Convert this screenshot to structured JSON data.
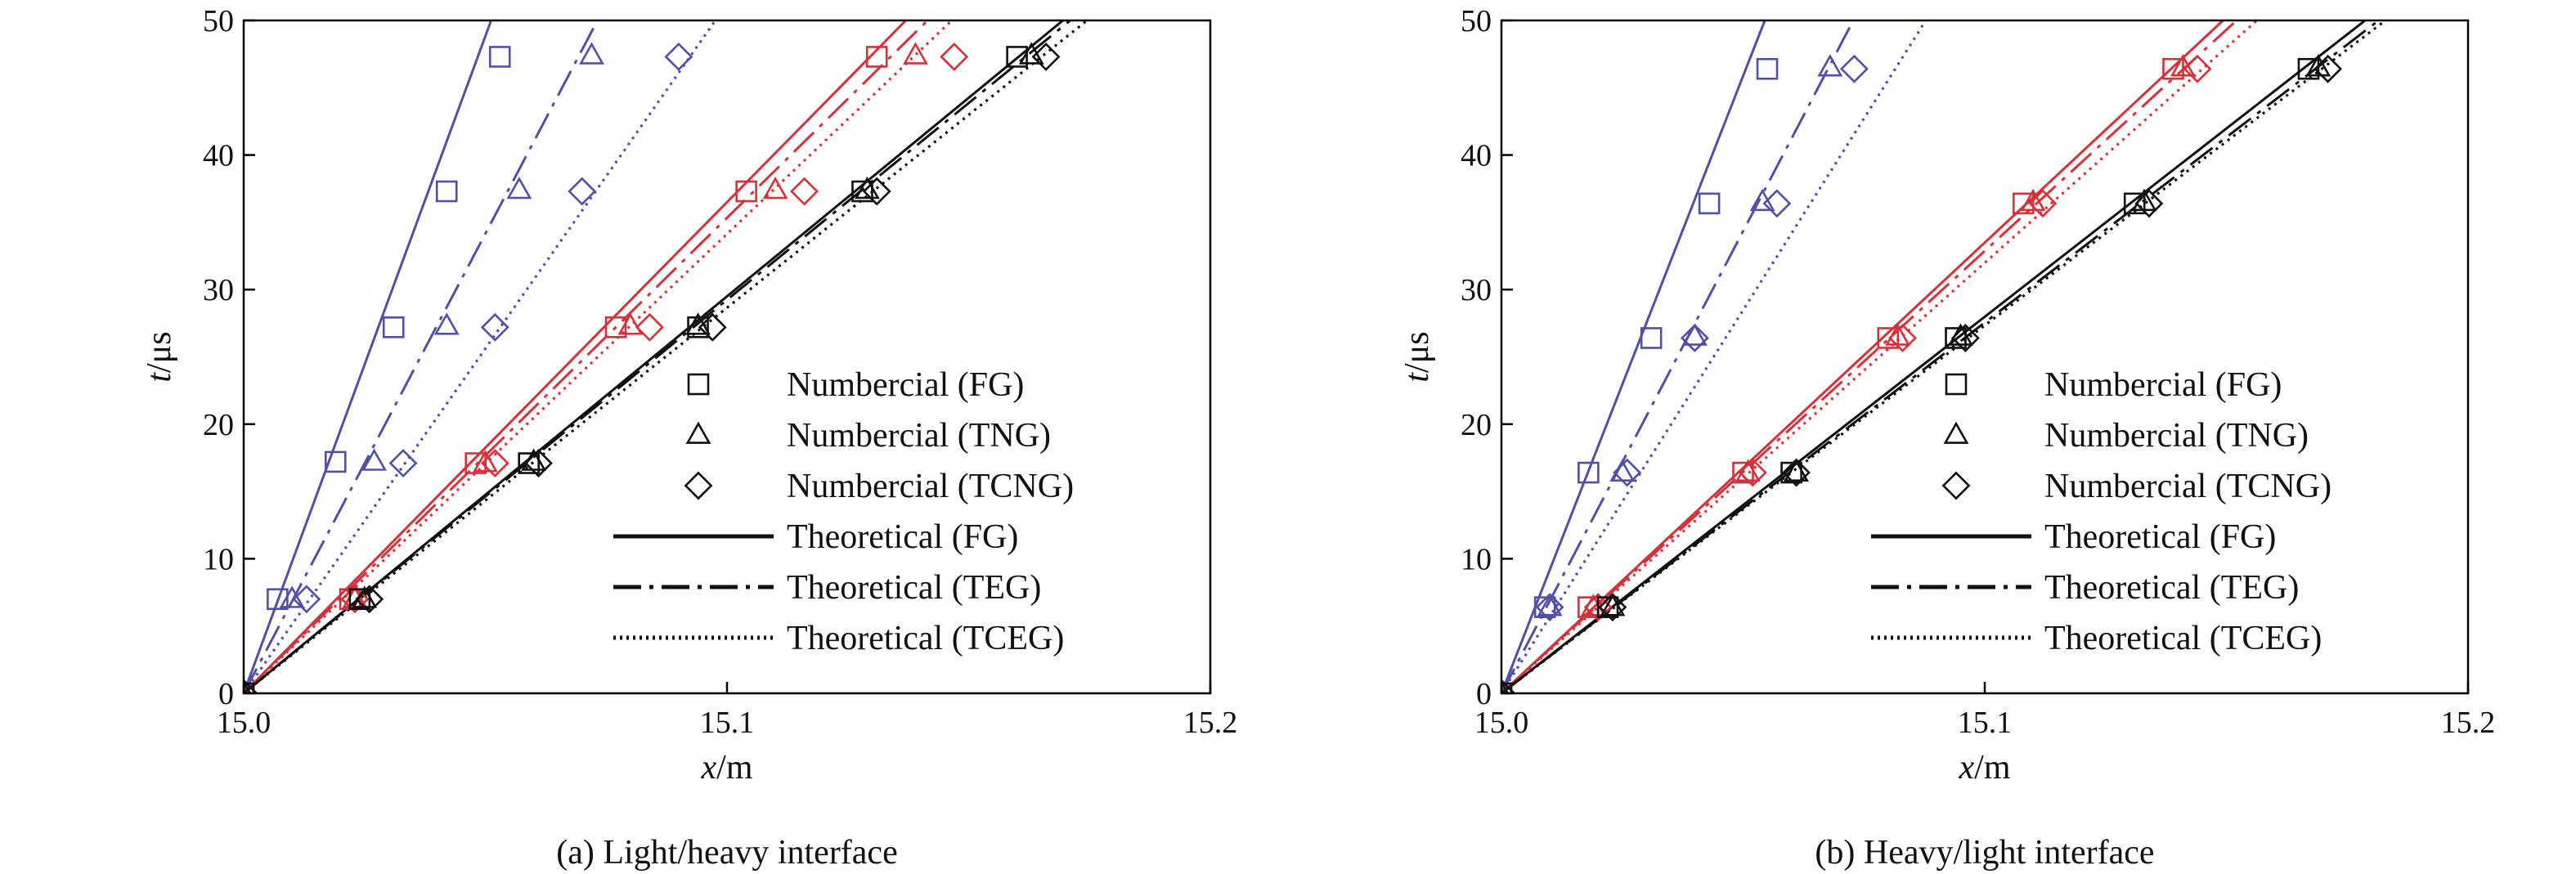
{
  "colors": {
    "blue": "#5250a6",
    "red": "#d6313a",
    "black": "#111111"
  },
  "chart_data": [
    {
      "type": "line",
      "caption": "(a) Light/heavy interface",
      "xlabel_var": "x",
      "xlabel_unit": "/m",
      "ylabel_var": "t",
      "ylabel_unit": "/μs",
      "xlim": [
        15.0,
        15.2
      ],
      "ylim": [
        0,
        50
      ],
      "xticks": [
        15.0,
        15.1,
        15.2
      ],
      "xtick_labels": [
        "15.0",
        "15.1",
        "15.2"
      ],
      "yticks": [
        0,
        10,
        20,
        30,
        40,
        50
      ],
      "ytick_labels": [
        "0",
        "10",
        "20",
        "30",
        "40",
        "50"
      ],
      "legend": [
        {
          "label": "Numbercial (FG)",
          "kind": "marker",
          "marker": "square"
        },
        {
          "label": "Numbercial (TNG)",
          "kind": "marker",
          "marker": "triangle"
        },
        {
          "label": "Numbercial (TCNG)",
          "kind": "marker",
          "marker": "diamond"
        },
        {
          "label": "Theoretical (FG)",
          "kind": "line",
          "style": "solid"
        },
        {
          "label": "Theoretical (TEG)",
          "kind": "line",
          "style": "dashdot"
        },
        {
          "label": "Theoretical (TCEG)",
          "kind": "line",
          "style": "dotted"
        }
      ],
      "lines": [
        {
          "color": "blue",
          "style": "solid",
          "x": [
            15.0,
            15.0512
          ],
          "y": [
            0,
            50
          ]
        },
        {
          "color": "blue",
          "style": "dashdot",
          "x": [
            15.0,
            15.0732
          ],
          "y": [
            0,
            50
          ]
        },
        {
          "color": "blue",
          "style": "dotted",
          "x": [
            15.0,
            15.0976
          ],
          "y": [
            0,
            50
          ]
        },
        {
          "color": "red",
          "style": "solid",
          "x": [
            15.0,
            15.137
          ],
          "y": [
            0,
            50
          ]
        },
        {
          "color": "red",
          "style": "dashdot",
          "x": [
            15.0,
            15.1415
          ],
          "y": [
            0,
            50
          ]
        },
        {
          "color": "red",
          "style": "dotted",
          "x": [
            15.0,
            15.1465
          ],
          "y": [
            0,
            50
          ]
        },
        {
          "color": "black",
          "style": "solid",
          "x": [
            15.0,
            15.1695
          ],
          "y": [
            0,
            50
          ]
        },
        {
          "color": "black",
          "style": "dashdot",
          "x": [
            15.0,
            15.171
          ],
          "y": [
            0,
            50
          ]
        },
        {
          "color": "black",
          "style": "dotted",
          "x": [
            15.0,
            15.1745
          ],
          "y": [
            0,
            50
          ]
        }
      ],
      "markers": [
        {
          "color": "blue",
          "marker": "square",
          "x": [
            15.0,
            15.007,
            15.019,
            15.031,
            15.042,
            15.053
          ],
          "y": [
            0,
            7,
            17.2,
            27.2,
            37.3,
            47.3
          ]
        },
        {
          "color": "blue",
          "marker": "triangle",
          "x": [
            15.0,
            15.01,
            15.027,
            15.042,
            15.057,
            15.072
          ],
          "y": [
            0,
            7,
            17.2,
            27.3,
            37.4,
            47.4
          ]
        },
        {
          "color": "blue",
          "marker": "diamond",
          "x": [
            15.0,
            15.013,
            15.033,
            15.052,
            15.07,
            15.09
          ],
          "y": [
            0,
            7,
            17.1,
            27.2,
            37.3,
            47.3
          ]
        },
        {
          "color": "red",
          "marker": "square",
          "x": [
            15.0,
            15.022,
            15.048,
            15.077,
            15.104,
            15.131
          ],
          "y": [
            0,
            7,
            17.1,
            27.2,
            37.3,
            47.3
          ]
        },
        {
          "color": "red",
          "marker": "triangle",
          "x": [
            15.0,
            15.023,
            15.05,
            15.08,
            15.11,
            15.139
          ],
          "y": [
            0,
            7,
            17.1,
            27.3,
            37.4,
            47.4
          ]
        },
        {
          "color": "red",
          "marker": "diamond",
          "x": [
            15.0,
            15.023,
            15.052,
            15.084,
            15.116,
            15.147
          ],
          "y": [
            0,
            7,
            17.1,
            27.2,
            37.3,
            47.3
          ]
        },
        {
          "color": "black",
          "marker": "square",
          "x": [
            15.0,
            15.024,
            15.059,
            15.094,
            15.128,
            15.16
          ],
          "y": [
            0,
            7,
            17.1,
            27.2,
            37.3,
            47.3
          ]
        },
        {
          "color": "black",
          "marker": "triangle",
          "x": [
            15.0,
            15.025,
            15.06,
            15.094,
            15.129,
            15.163
          ],
          "y": [
            0,
            7,
            17.2,
            27.3,
            37.4,
            47.4
          ]
        },
        {
          "color": "black",
          "marker": "diamond",
          "x": [
            15.0,
            15.026,
            15.061,
            15.097,
            15.131,
            15.166
          ],
          "y": [
            0,
            7,
            17.1,
            27.2,
            37.3,
            47.3
          ]
        }
      ]
    },
    {
      "type": "line",
      "caption": "(b) Heavy/light interface",
      "xlabel_var": "x",
      "xlabel_unit": "/m",
      "ylabel_var": "t",
      "ylabel_unit": "/μs",
      "xlim": [
        15.0,
        15.2
      ],
      "ylim": [
        0,
        50
      ],
      "xticks": [
        15.0,
        15.1,
        15.2
      ],
      "xtick_labels": [
        "15.0",
        "15.1",
        "15.2"
      ],
      "yticks": [
        0,
        10,
        20,
        30,
        40,
        50
      ],
      "ytick_labels": [
        "0",
        "10",
        "20",
        "30",
        "40",
        "50"
      ],
      "legend": [
        {
          "label": "Numbercial (FG)",
          "kind": "marker",
          "marker": "square"
        },
        {
          "label": "Numbercial (TNG)",
          "kind": "marker",
          "marker": "triangle"
        },
        {
          "label": "Numbercial (TCNG)",
          "kind": "marker",
          "marker": "diamond"
        },
        {
          "label": "Theoretical (FG)",
          "kind": "line",
          "style": "solid"
        },
        {
          "label": "Theoretical (TEG)",
          "kind": "line",
          "style": "dashdot"
        },
        {
          "label": "Theoretical (TCEG)",
          "kind": "line",
          "style": "dotted"
        }
      ],
      "lines": [
        {
          "color": "blue",
          "style": "solid",
          "x": [
            15.0,
            15.0545
          ],
          "y": [
            0,
            50
          ]
        },
        {
          "color": "blue",
          "style": "dashdot",
          "x": [
            15.0,
            15.0728
          ],
          "y": [
            0,
            50
          ]
        },
        {
          "color": "blue",
          "style": "dotted",
          "x": [
            15.0,
            15.0878
          ],
          "y": [
            0,
            50
          ]
        },
        {
          "color": "red",
          "style": "solid",
          "x": [
            15.0,
            15.1493
          ],
          "y": [
            0,
            50
          ]
        },
        {
          "color": "red",
          "style": "dashdot",
          "x": [
            15.0,
            15.1521
          ],
          "y": [
            0,
            50
          ]
        },
        {
          "color": "red",
          "style": "dotted",
          "x": [
            15.0,
            15.1563
          ],
          "y": [
            0,
            50
          ]
        },
        {
          "color": "black",
          "style": "solid",
          "x": [
            15.0,
            15.1787
          ],
          "y": [
            0,
            50
          ]
        },
        {
          "color": "black",
          "style": "dashdot",
          "x": [
            15.0,
            15.1815
          ],
          "y": [
            0,
            50
          ]
        },
        {
          "color": "black",
          "style": "dotted",
          "x": [
            15.0,
            15.1829
          ],
          "y": [
            0,
            50
          ]
        }
      ],
      "markers": [
        {
          "color": "blue",
          "marker": "square",
          "x": [
            15.0,
            15.009,
            15.018,
            15.031,
            15.043,
            15.055
          ],
          "y": [
            0,
            6.4,
            16.4,
            26.4,
            36.4,
            46.4
          ]
        },
        {
          "color": "blue",
          "marker": "triangle",
          "x": [
            15.0,
            15.01,
            15.025,
            15.04,
            15.054,
            15.068
          ],
          "y": [
            0,
            6.4,
            16.4,
            26.5,
            36.5,
            46.5
          ]
        },
        {
          "color": "blue",
          "marker": "diamond",
          "x": [
            15.0,
            15.01,
            15.026,
            15.04,
            15.057,
            15.073
          ],
          "y": [
            0,
            6.4,
            16.4,
            26.4,
            36.4,
            46.4
          ]
        },
        {
          "color": "red",
          "marker": "square",
          "x": [
            15.0,
            15.018,
            15.05,
            15.08,
            15.108,
            15.139
          ],
          "y": [
            0,
            6.4,
            16.4,
            26.4,
            36.4,
            46.4
          ]
        },
        {
          "color": "red",
          "marker": "triangle",
          "x": [
            15.0,
            15.019,
            15.051,
            15.082,
            15.11,
            15.141
          ],
          "y": [
            0,
            6.4,
            16.4,
            26.5,
            36.5,
            46.5
          ]
        },
        {
          "color": "red",
          "marker": "diamond",
          "x": [
            15.0,
            15.02,
            15.052,
            15.083,
            15.112,
            15.144
          ],
          "y": [
            0,
            6.4,
            16.4,
            26.4,
            36.4,
            46.4
          ]
        },
        {
          "color": "black",
          "marker": "square",
          "x": [
            15.0,
            15.022,
            15.06,
            15.094,
            15.131,
            15.167
          ],
          "y": [
            0,
            6.4,
            16.4,
            26.4,
            36.4,
            46.4
          ]
        },
        {
          "color": "black",
          "marker": "triangle",
          "x": [
            15.0,
            15.023,
            15.061,
            15.095,
            15.133,
            15.169
          ],
          "y": [
            0,
            6.4,
            16.4,
            26.5,
            36.5,
            46.5
          ]
        },
        {
          "color": "black",
          "marker": "diamond",
          "x": [
            15.0,
            15.023,
            15.061,
            15.096,
            15.134,
            15.171
          ],
          "y": [
            0,
            6.4,
            16.4,
            26.4,
            36.4,
            46.4
          ]
        }
      ]
    }
  ]
}
